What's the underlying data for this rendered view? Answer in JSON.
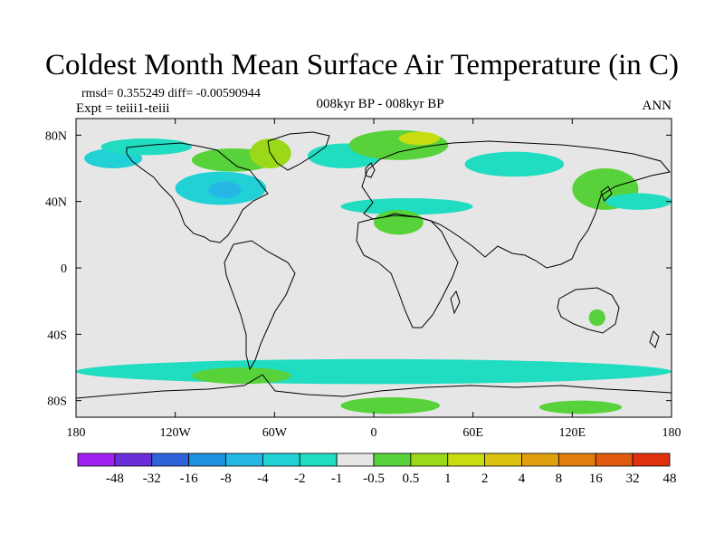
{
  "figure": {
    "title": "Coldest Month Mean Surface Air Temperature (in C)",
    "stats": "rmsd= 0.355249 diff= -0.00590944",
    "experiment": "Expt = teiii1-teiii",
    "period": "008kyr BP - 008kyr BP",
    "season": "ANN"
  },
  "map": {
    "projection": "cylindrical equidistant",
    "lon_range": [
      -180,
      180
    ],
    "lat_range": [
      -90,
      90
    ],
    "lon_ticks": [
      {
        "value": -180,
        "label": "180"
      },
      {
        "value": -120,
        "label": "120W"
      },
      {
        "value": -60,
        "label": "60W"
      },
      {
        "value": 0,
        "label": "0"
      },
      {
        "value": 60,
        "label": "60E"
      },
      {
        "value": 120,
        "label": "120E"
      },
      {
        "value": 180,
        "label": "180"
      }
    ],
    "lat_ticks": [
      {
        "value": 80,
        "label": "80N"
      },
      {
        "value": 40,
        "label": "40N"
      },
      {
        "value": 0,
        "label": "0"
      },
      {
        "value": -40,
        "label": "40S"
      },
      {
        "value": -80,
        "label": "80S"
      }
    ],
    "background_color": "#e6e6e6"
  },
  "colorbar": {
    "labels": [
      "-48",
      "-32",
      "-16",
      "-8",
      "-4",
      "-2",
      "-1",
      "-0.5",
      "0.5",
      "1",
      "2",
      "4",
      "8",
      "16",
      "32",
      "48"
    ],
    "colors": [
      "#a020f0",
      "#6a2fd9",
      "#2f63d9",
      "#1e90e0",
      "#25b8e6",
      "#21d1d6",
      "#20dcc0",
      "#e6e6e6",
      "#58d23a",
      "#9ad818",
      "#c8dc10",
      "#dcc310",
      "#e0a010",
      "#e07e10",
      "#e05a10",
      "#e0320e"
    ]
  },
  "chart_data": {
    "type": "heatmap",
    "title": "Coldest Month Mean Surface Air Temperature (in C)",
    "xlabel": "",
    "ylabel": "",
    "xlim": [
      -180,
      180
    ],
    "ylim": [
      -90,
      90
    ],
    "regions": [
      {
        "category": "-2 to -1",
        "lon": [
          -175,
          -140
        ],
        "lat": [
          60,
          72
        ]
      },
      {
        "category": "-1 to -0.5",
        "lon": [
          -165,
          -110
        ],
        "lat": [
          68,
          78
        ]
      },
      {
        "category": "-2 to -1",
        "lon": [
          -120,
          -65
        ],
        "lat": [
          38,
          58
        ]
      },
      {
        "category": "-4 to -2",
        "lon": [
          -100,
          -80
        ],
        "lat": [
          42,
          52
        ]
      },
      {
        "category": "0.5 to 1",
        "lon": [
          -110,
          -60
        ],
        "lat": [
          58,
          72
        ]
      },
      {
        "category": "1 to 2",
        "lon": [
          -75,
          -50
        ],
        "lat": [
          60,
          78
        ]
      },
      {
        "category": "-1 to -0.5",
        "lon": [
          -40,
          5
        ],
        "lat": [
          60,
          75
        ]
      },
      {
        "category": "0.5 to 1",
        "lon": [
          -15,
          45
        ],
        "lat": [
          65,
          83
        ]
      },
      {
        "category": "2 to 4",
        "lon": [
          15,
          40
        ],
        "lat": [
          74,
          82
        ]
      },
      {
        "category": "-1 to -0.5",
        "lon": [
          55,
          115
        ],
        "lat": [
          55,
          70
        ]
      },
      {
        "category": "-1 to -0.5",
        "lon": [
          -20,
          60
        ],
        "lat": [
          32,
          42
        ]
      },
      {
        "category": "0.5 to 1",
        "lon": [
          0,
          30
        ],
        "lat": [
          20,
          35
        ]
      },
      {
        "category": "0.5 to 1",
        "lon": [
          120,
          160
        ],
        "lat": [
          35,
          60
        ]
      },
      {
        "category": "-1 to -0.5",
        "lon": [
          140,
          180
        ],
        "lat": [
          35,
          45
        ]
      },
      {
        "category": "0.5 to 1",
        "lon": [
          130,
          140
        ],
        "lat": [
          -35,
          -25
        ]
      },
      {
        "category": "-1 to -0.5",
        "lon": [
          -180,
          180
        ],
        "lat": [
          -70,
          -55
        ]
      },
      {
        "category": "0.5 to 1",
        "lon": [
          -110,
          -50
        ],
        "lat": [
          -70,
          -60
        ]
      },
      {
        "category": "0.5 to 1",
        "lon": [
          -20,
          40
        ],
        "lat": [
          -88,
          -78
        ]
      },
      {
        "category": "0.5 to 1",
        "lon": [
          100,
          150
        ],
        "lat": [
          -88,
          -80
        ]
      }
    ]
  }
}
